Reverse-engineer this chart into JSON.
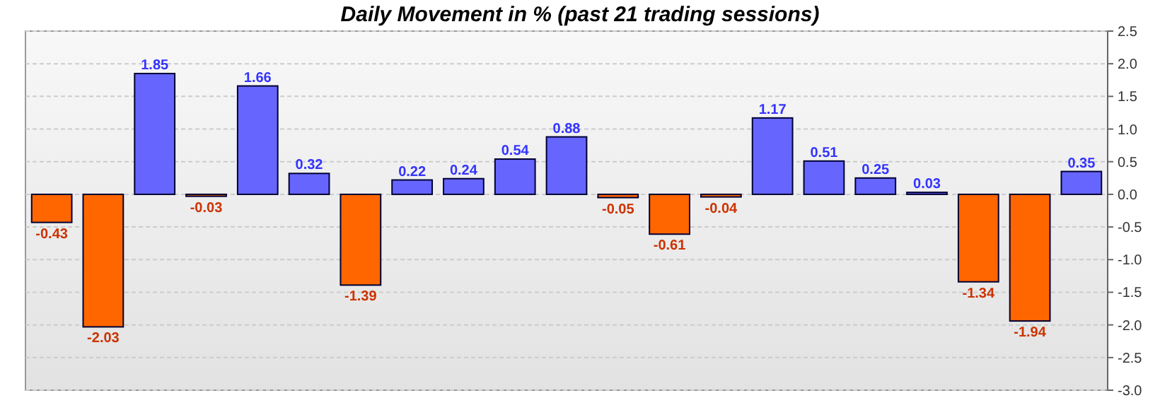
{
  "chart_data": {
    "type": "bar",
    "title": "Daily Movement in % (past 21 trading sessions)",
    "categories": [
      null,
      null,
      null,
      null,
      null,
      null,
      null,
      null,
      null,
      null,
      null,
      null,
      null,
      null,
      null,
      null,
      null,
      null,
      null,
      null,
      null
    ],
    "values": [
      -0.43,
      -2.03,
      1.85,
      -0.03,
      1.66,
      0.32,
      -1.39,
      0.22,
      0.24,
      0.54,
      0.88,
      -0.05,
      -0.61,
      -0.04,
      1.17,
      0.51,
      0.25,
      0.03,
      -1.34,
      -1.94,
      0.35
    ],
    "colors": [
      "#ff6600",
      "#ff6600",
      "#6666ff",
      "#ff6600",
      "#6666ff",
      "#6666ff",
      "#ff6600",
      "#6666ff",
      "#6666ff",
      "#6666ff",
      "#6666ff",
      "#ff6600",
      "#ff6600",
      "#ff6600",
      "#6666ff",
      "#6666ff",
      "#6666ff",
      "#6666ff",
      "#ff6600",
      "#ff6600",
      "#6666ff"
    ],
    "ylim": [
      -3,
      2.5
    ],
    "yticks": [
      2.5,
      {
        "value": 2,
        "label": "2.0"
      },
      1.5,
      {
        "value": 1,
        "label": "1.0"
      },
      0.5,
      {
        "value": 0,
        "label": "0.0"
      },
      -0.5,
      {
        "value": -1,
        "label": "-1.0"
      },
      -1.5,
      {
        "value": -2,
        "label": "-2.0"
      },
      -2.5,
      {
        "value": -3,
        "label": "-3.0"
      }
    ],
    "grid": "y",
    "data_labels": true
  }
}
